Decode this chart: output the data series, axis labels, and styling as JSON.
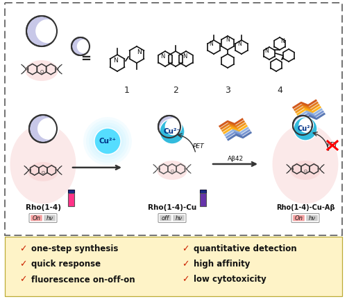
{
  "background_color": "#ffffff",
  "pink_highlight": "#f8d0d0",
  "checkmark_color": "#cc2200",
  "bullet_items_left": [
    "one-step synthesis",
    "quick response",
    "fluorescence on-off-on"
  ],
  "bullet_items_right": [
    "quantitative detection",
    "high affinity",
    "low cytotoxicity"
  ],
  "compound_labels": [
    "1",
    "2",
    "3",
    "4"
  ],
  "moon_fill": "#c8c8e8",
  "moon_stroke": "#333333",
  "cu_color_glow": "#55ddff",
  "cu_color_dark": "#33bbdd",
  "vial_pink": "#ff3388",
  "vial_purple": "#6633aa",
  "on_box_color": "#f4a0a0",
  "off_box_color": "#cccccc",
  "bottom_bg": "#fef3c7",
  "dashed_color": "#666666",
  "arrow_color": "#333333",
  "ec_compound": "#111111",
  "abeta_colors": [
    "#cc4400",
    "#dd6600",
    "#ee8800",
    "#ffaa00",
    "#88aadd",
    "#6688cc",
    "#4466aa"
  ]
}
